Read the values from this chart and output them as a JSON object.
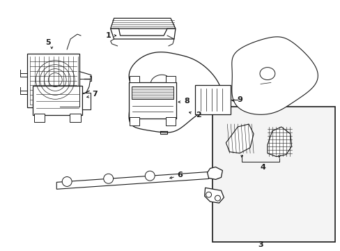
{
  "bg_color": "#ffffff",
  "line_color": "#1a1a1a",
  "figsize": [
    4.89,
    3.6
  ],
  "dpi": 100,
  "gray": "#888888",
  "lightgray": "#bbbbbb"
}
